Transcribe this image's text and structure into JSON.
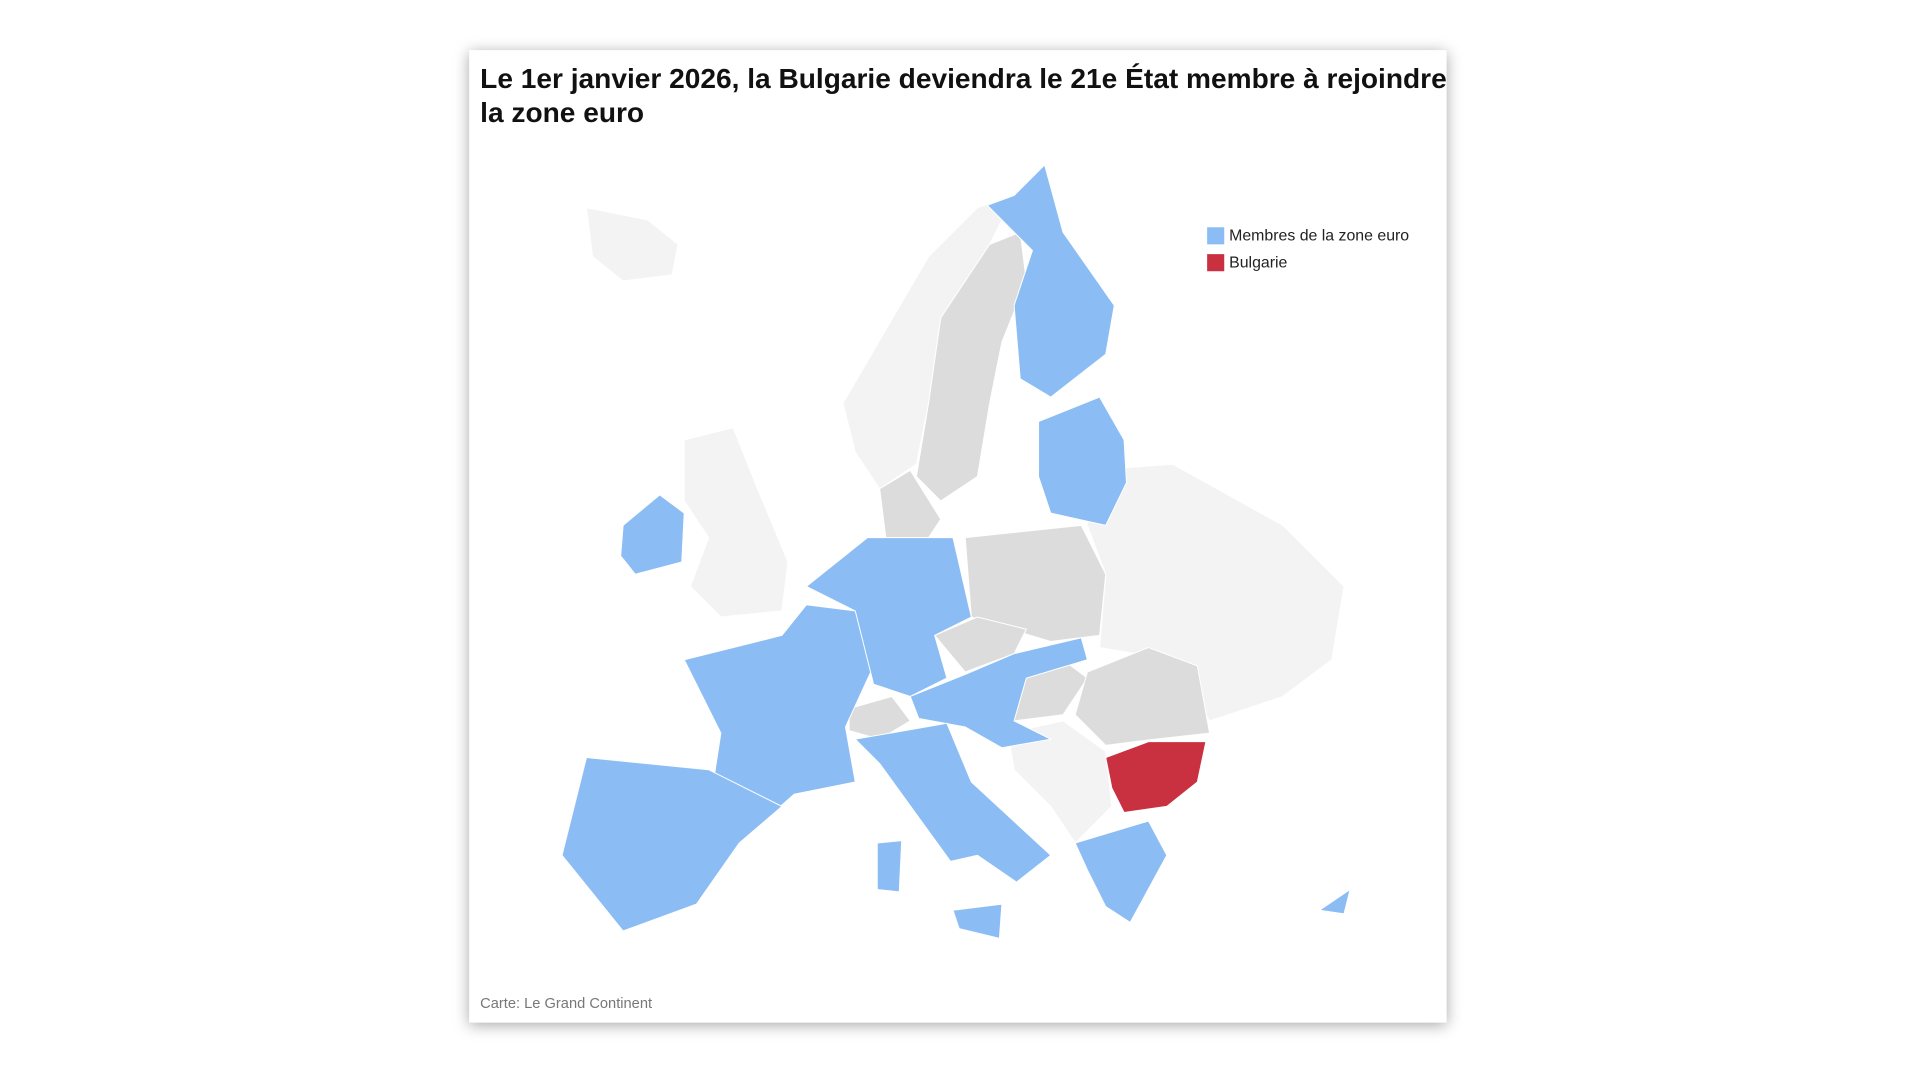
{
  "title_line1": "Le 1er janvier 2026, la Bulgarie deviendra le 21e État membre à rejoindre",
  "title_line2": "la zone euro",
  "legend": [
    {
      "label": "Membres de la zone euro",
      "color": "#8bbdf4"
    },
    {
      "label": "Bulgarie",
      "color": "#c93040"
    }
  ],
  "source": "Carte: Le Grand Continent"
}
